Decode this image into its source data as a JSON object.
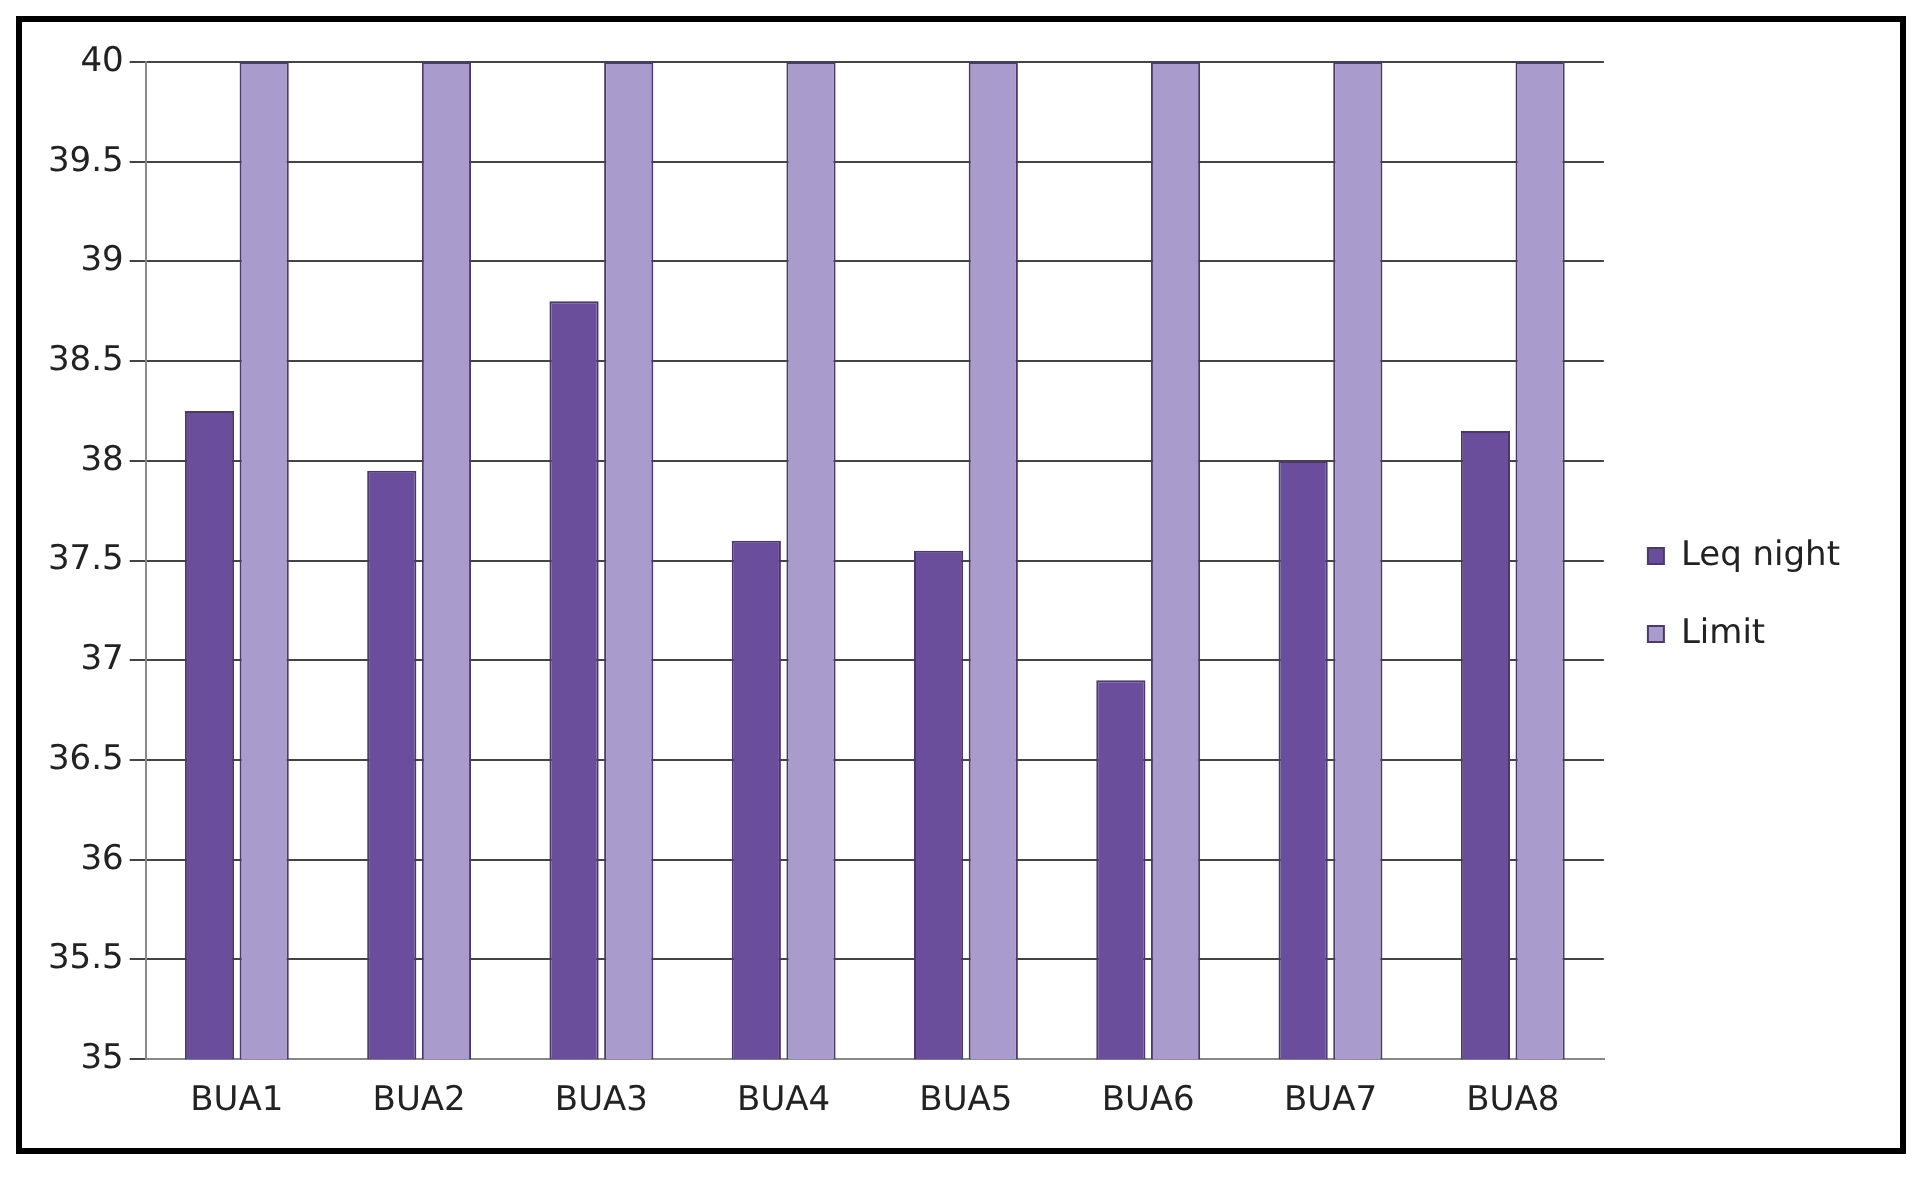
{
  "chart_data": {
    "type": "bar",
    "categories": [
      "BUA1",
      "BUA2",
      "BUA3",
      "BUA4",
      "BUA5",
      "BUA6",
      "BUA7",
      "BUA8"
    ],
    "series": [
      {
        "name": "Leq night",
        "color": "#6b4e9b",
        "values": [
          38.25,
          37.95,
          38.8,
          37.6,
          37.55,
          36.9,
          38.0,
          38.15
        ]
      },
      {
        "name": "Limit",
        "color": "#a99bcb",
        "values": [
          40,
          40,
          40,
          40,
          40,
          40,
          40,
          40
        ]
      }
    ],
    "ylim": [
      35,
      40
    ],
    "yticks": [
      35,
      35.5,
      36,
      36.5,
      37,
      37.5,
      38,
      38.5,
      39,
      39.5,
      40
    ],
    "grid": "y",
    "legend": "right"
  }
}
